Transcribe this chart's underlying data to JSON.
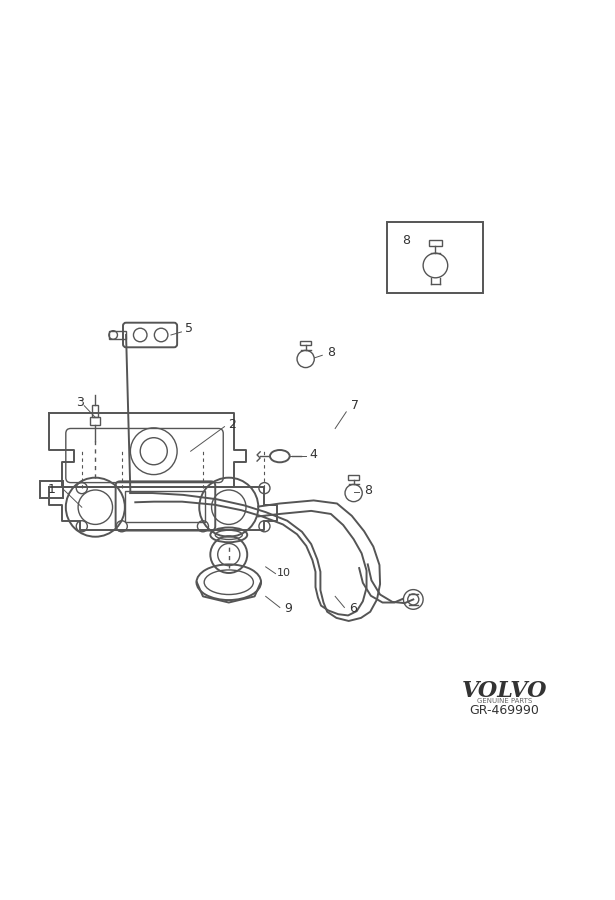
{
  "bg_color": "#ffffff",
  "line_color": "#555555",
  "label_color": "#333333",
  "volvo_text": "VOLVO",
  "genuine_parts": "GENUINE PARTS",
  "part_number": "GR-469990",
  "label_fontsize": 9,
  "label_10_fontsize": 8
}
